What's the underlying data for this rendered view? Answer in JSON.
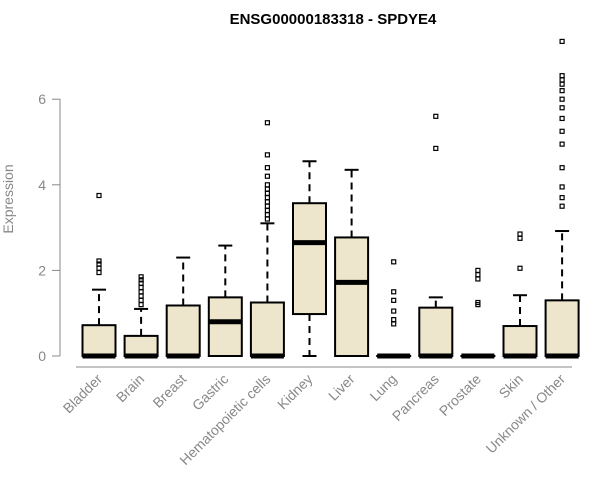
{
  "chart_data": {
    "type": "boxplot",
    "title": "ENSG00000183318 - SPDYE4",
    "xlabel": "",
    "ylabel": "Expression",
    "ylim": [
      0,
      7.5
    ],
    "yticks": [
      0,
      2,
      4,
      6
    ],
    "box_fill": "#ede6cc",
    "categories": [
      "Bladder",
      "Brain",
      "Breast",
      "Gastric",
      "Hematopoietic cells",
      "Kidney",
      "Liver",
      "Lung",
      "Pancreas",
      "Prostate",
      "Skin",
      "Unknown / Other"
    ],
    "boxes": [
      {
        "name": "Bladder",
        "min": 0,
        "q1": 0,
        "median": 0,
        "q3": 0.72,
        "max": 1.55,
        "outliers": [
          1.95,
          2.05,
          2.15,
          2.22,
          3.75
        ]
      },
      {
        "name": "Brain",
        "min": 0,
        "q1": 0,
        "median": 0,
        "q3": 0.47,
        "max": 1.1,
        "outliers": [
          1.2,
          1.3,
          1.4,
          1.5,
          1.6,
          1.7,
          1.78,
          1.85
        ]
      },
      {
        "name": "Breast",
        "min": 0,
        "q1": 0,
        "median": 0,
        "q3": 1.18,
        "max": 2.3,
        "outliers": []
      },
      {
        "name": "Gastric",
        "min": 0,
        "q1": 0,
        "median": 0.8,
        "q3": 1.37,
        "max": 2.58,
        "outliers": []
      },
      {
        "name": "Hematopoietic cells",
        "min": 0,
        "q1": 0,
        "median": 0,
        "q3": 1.25,
        "max": 3.1,
        "outliers": [
          3.2,
          3.3,
          3.4,
          3.5,
          3.6,
          3.7,
          3.8,
          3.9,
          4.0,
          4.2,
          4.4,
          4.7,
          5.45
        ]
      },
      {
        "name": "Kidney",
        "min": 0,
        "q1": 0.98,
        "median": 2.65,
        "q3": 3.57,
        "max": 4.55,
        "outliers": []
      },
      {
        "name": "Liver",
        "min": 0,
        "q1": 0,
        "median": 1.72,
        "q3": 2.77,
        "max": 4.35,
        "outliers": []
      },
      {
        "name": "Lung",
        "min": 0,
        "q1": 0,
        "median": 0,
        "q3": 0,
        "max": 0,
        "outliers": [
          0.75,
          0.85,
          1.05,
          1.3,
          1.5,
          2.2
        ]
      },
      {
        "name": "Pancreas",
        "min": 0,
        "q1": 0,
        "median": 0,
        "q3": 1.13,
        "max": 1.37,
        "outliers": [
          4.85,
          5.6
        ]
      },
      {
        "name": "Prostate",
        "min": 0,
        "q1": 0,
        "median": 0,
        "q3": 0,
        "max": 0,
        "outliers": [
          1.2,
          1.25,
          1.8,
          1.9,
          2.0
        ]
      },
      {
        "name": "Skin",
        "min": 0,
        "q1": 0,
        "median": 0,
        "q3": 0.7,
        "max": 1.42,
        "outliers": [
          2.05,
          2.75,
          2.85
        ]
      },
      {
        "name": "Unknown / Other",
        "min": 0,
        "q1": 0,
        "median": 0,
        "q3": 1.3,
        "max": 2.92,
        "outliers": [
          3.5,
          3.7,
          3.95,
          4.4,
          4.95,
          5.25,
          5.55,
          5.8,
          6.0,
          6.2,
          6.35,
          6.45,
          6.55,
          7.35
        ]
      }
    ]
  }
}
